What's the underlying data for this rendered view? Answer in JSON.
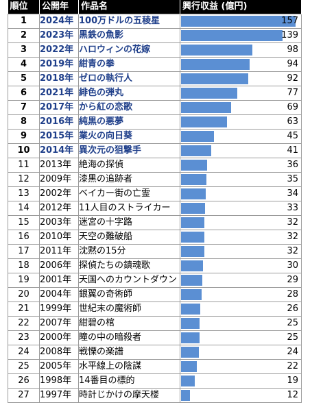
{
  "headers": {
    "rank": "順位",
    "year": "公開年",
    "title": "作品名",
    "value": "興行収益 (億円)"
  },
  "colors": {
    "bar": "#5b8fd3",
    "top_text": "#1f3f8a",
    "header_bg": "#000000"
  },
  "chart_data": {
    "type": "bar",
    "orientation": "horizontal",
    "xlim": [
      0,
      160
    ],
    "rows": [
      {
        "rank": "1",
        "year": "2024年",
        "title": "100万ドルの五稜星",
        "value": 157
      },
      {
        "rank": "2",
        "year": "2023年",
        "title": "黒鉄の魚影",
        "value": 139
      },
      {
        "rank": "3",
        "year": "2022年",
        "title": "ハロウィンの花嫁",
        "value": 98
      },
      {
        "rank": "4",
        "year": "2019年",
        "title": "紺青の拳",
        "value": 94
      },
      {
        "rank": "5",
        "year": "2018年",
        "title": "ゼロの執行人",
        "value": 92
      },
      {
        "rank": "6",
        "year": "2021年",
        "title": "緋色の弾丸",
        "value": 77
      },
      {
        "rank": "7",
        "year": "2017年",
        "title": "から紅の恋歌",
        "value": 69
      },
      {
        "rank": "8",
        "year": "2016年",
        "title": "純黒の悪夢",
        "value": 63
      },
      {
        "rank": "9",
        "year": "2015年",
        "title": "業火の向日葵",
        "value": 45
      },
      {
        "rank": "10",
        "year": "2014年",
        "title": "異次元の狙撃手",
        "value": 41
      },
      {
        "rank": "11",
        "year": "2013年",
        "title": "絶海の探偵",
        "value": 36
      },
      {
        "rank": "12",
        "year": "2009年",
        "title": "漆黒の追跡者",
        "value": 35
      },
      {
        "rank": "13",
        "year": "2002年",
        "title": "ベイカー街の亡霊",
        "value": 34
      },
      {
        "rank": "14",
        "year": "2012年",
        "title": "11人目のストライカー",
        "value": 33
      },
      {
        "rank": "15",
        "year": "2003年",
        "title": "迷宮の十字路",
        "value": 32
      },
      {
        "rank": "16",
        "year": "2010年",
        "title": "天空の難破船",
        "value": 32
      },
      {
        "rank": "17",
        "year": "2011年",
        "title": "沈黙の15分",
        "value": 32
      },
      {
        "rank": "18",
        "year": "2006年",
        "title": "探偵たちの鎮魂歌",
        "value": 30
      },
      {
        "rank": "19",
        "year": "2001年",
        "title": "天国へのカウントダウン",
        "value": 29
      },
      {
        "rank": "20",
        "year": "2004年",
        "title": "銀翼の奇術師",
        "value": 28
      },
      {
        "rank": "21",
        "year": "1999年",
        "title": "世紀末の魔術師",
        "value": 26
      },
      {
        "rank": "22",
        "year": "2007年",
        "title": "紺碧の棺",
        "value": 25
      },
      {
        "rank": "23",
        "year": "2000年",
        "title": "瞳の中の暗殺者",
        "value": 25
      },
      {
        "rank": "24",
        "year": "2008年",
        "title": "戦慄の楽譜",
        "value": 24
      },
      {
        "rank": "25",
        "year": "2005年",
        "title": "水平線上の陰謀",
        "value": 22
      },
      {
        "rank": "26",
        "year": "1998年",
        "title": "14番目の標的",
        "value": 19
      },
      {
        "rank": "27",
        "year": "1997年",
        "title": "時計じかけの摩天楼",
        "value": 12
      }
    ]
  }
}
